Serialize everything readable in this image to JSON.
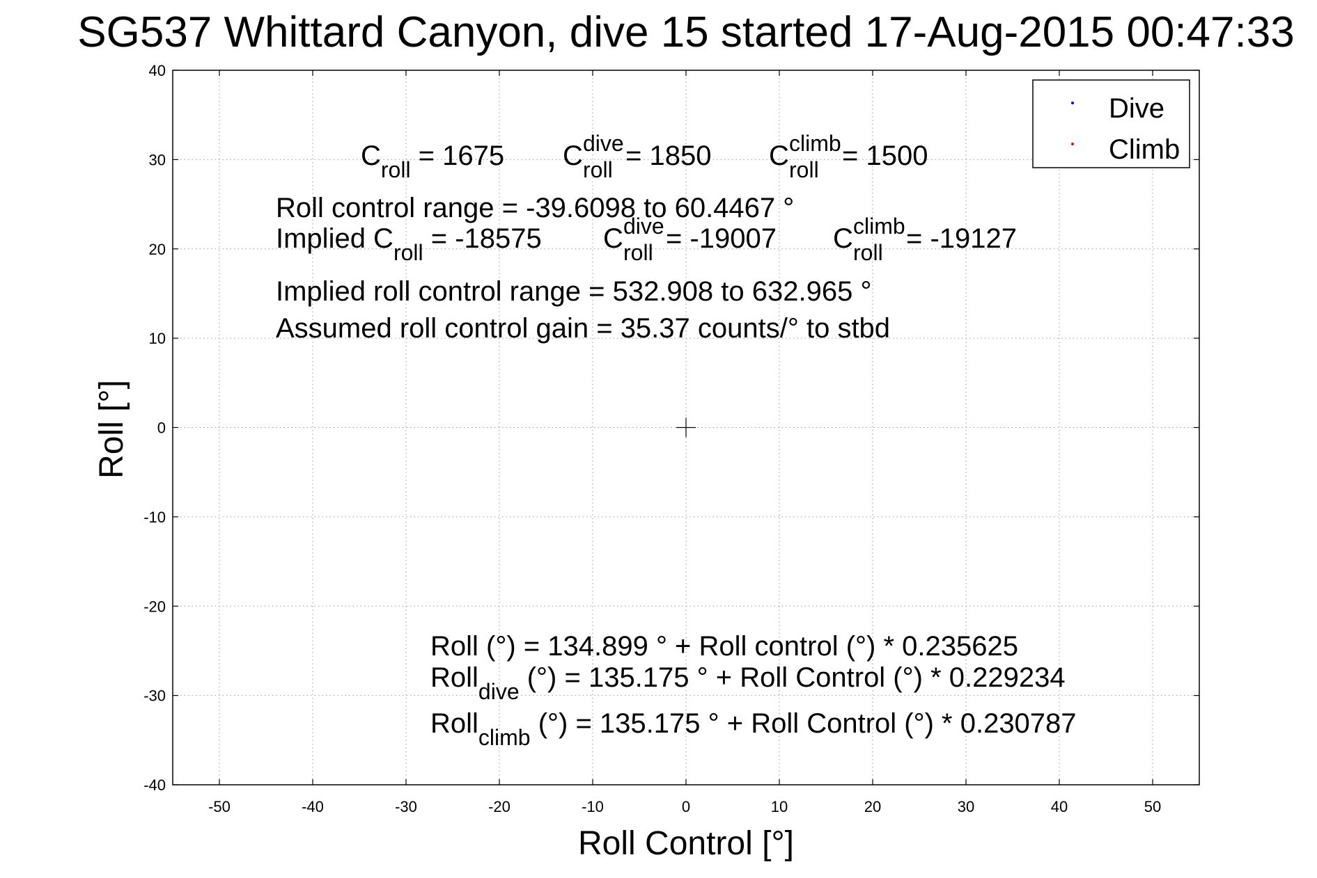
{
  "chart_data": {
    "type": "scatter",
    "title": "SG537 Whittard Canyon, dive 15 started 17-Aug-2015 00:47:33",
    "xlabel": "Roll Control [°]",
    "ylabel": "Roll [°]",
    "xlim": [
      -55,
      55
    ],
    "ylim": [
      -40,
      40
    ],
    "xticks": [
      -50,
      -40,
      -30,
      -20,
      -10,
      0,
      10,
      20,
      30,
      40,
      50
    ],
    "xtick_labels": [
      "-50",
      "-40",
      "-30",
      "-20",
      "-10",
      "0",
      "10",
      "20",
      "30",
      "40",
      "50"
    ],
    "yticks": [
      40,
      30,
      20,
      10,
      0,
      -10,
      -20,
      -30,
      -40
    ],
    "ytick_labels": [
      "40",
      "30",
      "20",
      "10",
      "0",
      "-10",
      "-20",
      "-30",
      "-40"
    ],
    "grid": true,
    "grid_style": "dotted",
    "legend_position": "top-right",
    "series": [
      {
        "name": "Dive",
        "color": "#0000ff",
        "marker": "point",
        "x": [],
        "y": []
      },
      {
        "name": "Climb",
        "color": "#ff0000",
        "marker": "point",
        "x": [],
        "y": []
      }
    ],
    "center_marker": {
      "type": "plus",
      "x": 0,
      "y": 0
    },
    "annotations": {
      "c_roll": {
        "base": "C",
        "sub": "roll",
        "value": " = 1675"
      },
      "c_roll_dive": {
        "base": "C",
        "sup": "dive",
        "sub": "roll",
        "value": " = 1850"
      },
      "c_roll_climb": {
        "base": "C",
        "sup": "climb",
        "sub": "roll",
        "value": " = 1500"
      },
      "range_line": "Roll control range = -39.6098 to 60.4467 °",
      "implied_prefix": "Implied C",
      "implied_c_roll_sub": "roll",
      "implied_c_roll_value": " = -18575",
      "implied_dive": {
        "base": "C",
        "sup": "dive",
        "sub": "roll",
        "value": " = -19007"
      },
      "implied_climb": {
        "base": "C",
        "sup": "climb",
        "sub": "roll",
        "value": " = -19127"
      },
      "implied_range_line": "Implied roll control range = 532.908 to 632.965 °",
      "gain_line": "Assumed roll control gain = 35.37 counts/° to stbd",
      "fit_line": "Roll (°) = 134.899 ° + Roll control (°) * 0.235625",
      "fit_dive": {
        "base": "Roll",
        "sub": "dive",
        "rest": " (°) = 135.175 ° + Roll Control (°) * 0.229234"
      },
      "fit_climb": {
        "base": "Roll",
        "sub": "climb",
        "rest": " (°) = 135.175 ° + Roll Control (°) * 0.230787"
      }
    }
  }
}
